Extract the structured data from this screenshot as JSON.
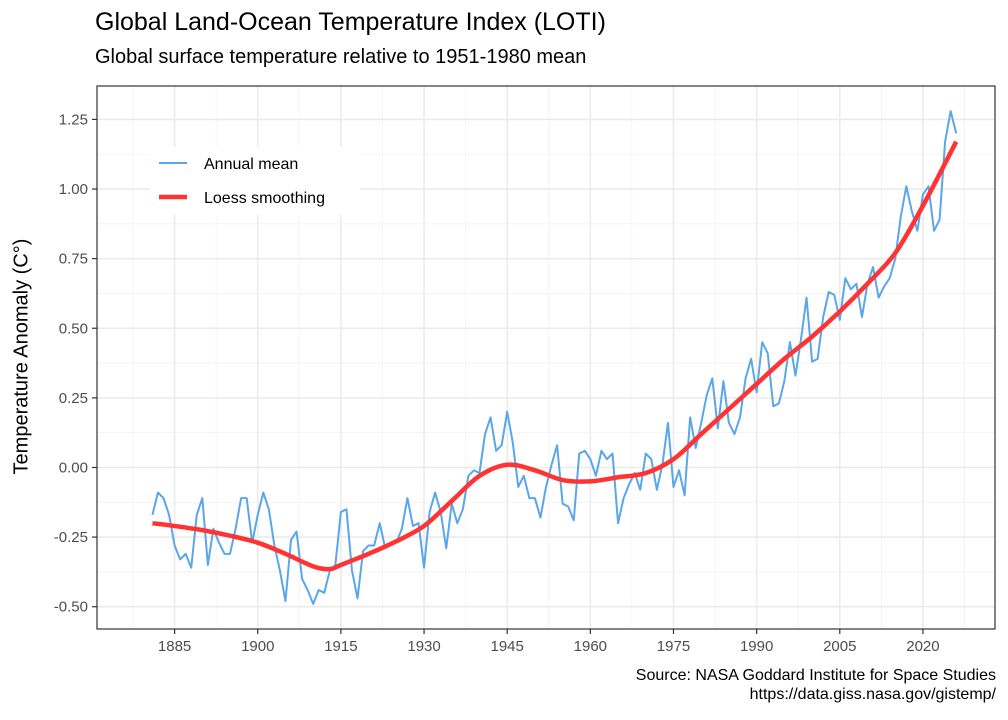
{
  "chart_data": {
    "type": "line",
    "title": "Global Land-Ocean Temperature Index (LOTI)",
    "subtitle": "Global surface temperature relative to 1951-1980 mean",
    "xlabel": "",
    "ylabel": "Temperature Anomaly (C°)",
    "caption": [
      "Source: NASA Goddard Institute for Space Studies",
      "https://data.giss.nasa.gov/gistemp/"
    ],
    "xlim": [
      1871,
      2033
    ],
    "ylim": [
      -0.58,
      1.37
    ],
    "x_ticks": [
      1885,
      1900,
      1915,
      1930,
      1945,
      1960,
      1975,
      1990,
      2005,
      2020
    ],
    "y_ticks": [
      -0.5,
      -0.25,
      0.0,
      0.25,
      0.5,
      0.75,
      1.0,
      1.25
    ],
    "y_tick_labels": [
      "-0.50",
      "-0.25",
      "0.00",
      "0.25",
      "0.50",
      "0.75",
      "1.00",
      "1.25"
    ],
    "grid": true,
    "legend_placement": "top-left",
    "series": [
      {
        "name": "Annual mean",
        "color": "#5aa6ea",
        "x_start": 1881,
        "values": [
          -0.17,
          -0.09,
          -0.11,
          -0.17,
          -0.28,
          -0.33,
          -0.31,
          -0.36,
          -0.17,
          -0.11,
          -0.35,
          -0.22,
          -0.27,
          -0.31,
          -0.31,
          -0.22,
          -0.11,
          -0.11,
          -0.27,
          -0.17,
          -0.09,
          -0.15,
          -0.28,
          -0.37,
          -0.48,
          -0.26,
          -0.23,
          -0.4,
          -0.44,
          -0.49,
          -0.44,
          -0.45,
          -0.37,
          -0.35,
          -0.16,
          -0.15,
          -0.37,
          -0.47,
          -0.3,
          -0.28,
          -0.28,
          -0.2,
          -0.29,
          -0.27,
          -0.27,
          -0.22,
          -0.11,
          -0.21,
          -0.2,
          -0.36,
          -0.16,
          -0.09,
          -0.16,
          -0.29,
          -0.13,
          -0.2,
          -0.15,
          -0.03,
          -0.01,
          -0.02,
          0.12,
          0.18,
          0.06,
          0.08,
          0.2,
          0.09,
          -0.07,
          -0.03,
          -0.11,
          -0.11,
          -0.18,
          -0.07,
          0.01,
          0.08,
          -0.13,
          -0.14,
          -0.19,
          0.05,
          0.06,
          0.03,
          -0.03,
          0.06,
          0.03,
          0.05,
          -0.2,
          -0.11,
          -0.06,
          -0.02,
          -0.08,
          0.05,
          0.03,
          -0.08,
          0.01,
          0.16,
          -0.07,
          -0.01,
          -0.1,
          0.18,
          0.07,
          0.16,
          0.26,
          0.32,
          0.14,
          0.31,
          0.16,
          0.12,
          0.18,
          0.32,
          0.39,
          0.27,
          0.45,
          0.41,
          0.22,
          0.23,
          0.31,
          0.45,
          0.33,
          0.46,
          0.61,
          0.38,
          0.39,
          0.54,
          0.63,
          0.62,
          0.53,
          0.68,
          0.64,
          0.66,
          0.54,
          0.66,
          0.72,
          0.61,
          0.65,
          0.68,
          0.75,
          0.9,
          1.01,
          0.92,
          0.85,
          0.98,
          1.01,
          0.85,
          0.89,
          1.17,
          1.28,
          1.2
        ]
      },
      {
        "name": "Loess smoothing",
        "color": "#ff3333",
        "x": [
          1881,
          1885,
          1890,
          1895,
          1900,
          1905,
          1910,
          1913,
          1915,
          1920,
          1925,
          1930,
          1935,
          1940,
          1945,
          1950,
          1955,
          1960,
          1965,
          1970,
          1975,
          1980,
          1985,
          1990,
          1995,
          2000,
          2005,
          2010,
          2015,
          2020,
          2026
        ],
        "values": [
          -0.2,
          -0.21,
          -0.225,
          -0.245,
          -0.27,
          -0.31,
          -0.355,
          -0.365,
          -0.35,
          -0.31,
          -0.265,
          -0.21,
          -0.12,
          -0.03,
          0.01,
          -0.01,
          -0.045,
          -0.05,
          -0.035,
          -0.02,
          0.03,
          0.12,
          0.21,
          0.3,
          0.39,
          0.47,
          0.56,
          0.66,
          0.77,
          0.94,
          1.17
        ]
      }
    ]
  }
}
